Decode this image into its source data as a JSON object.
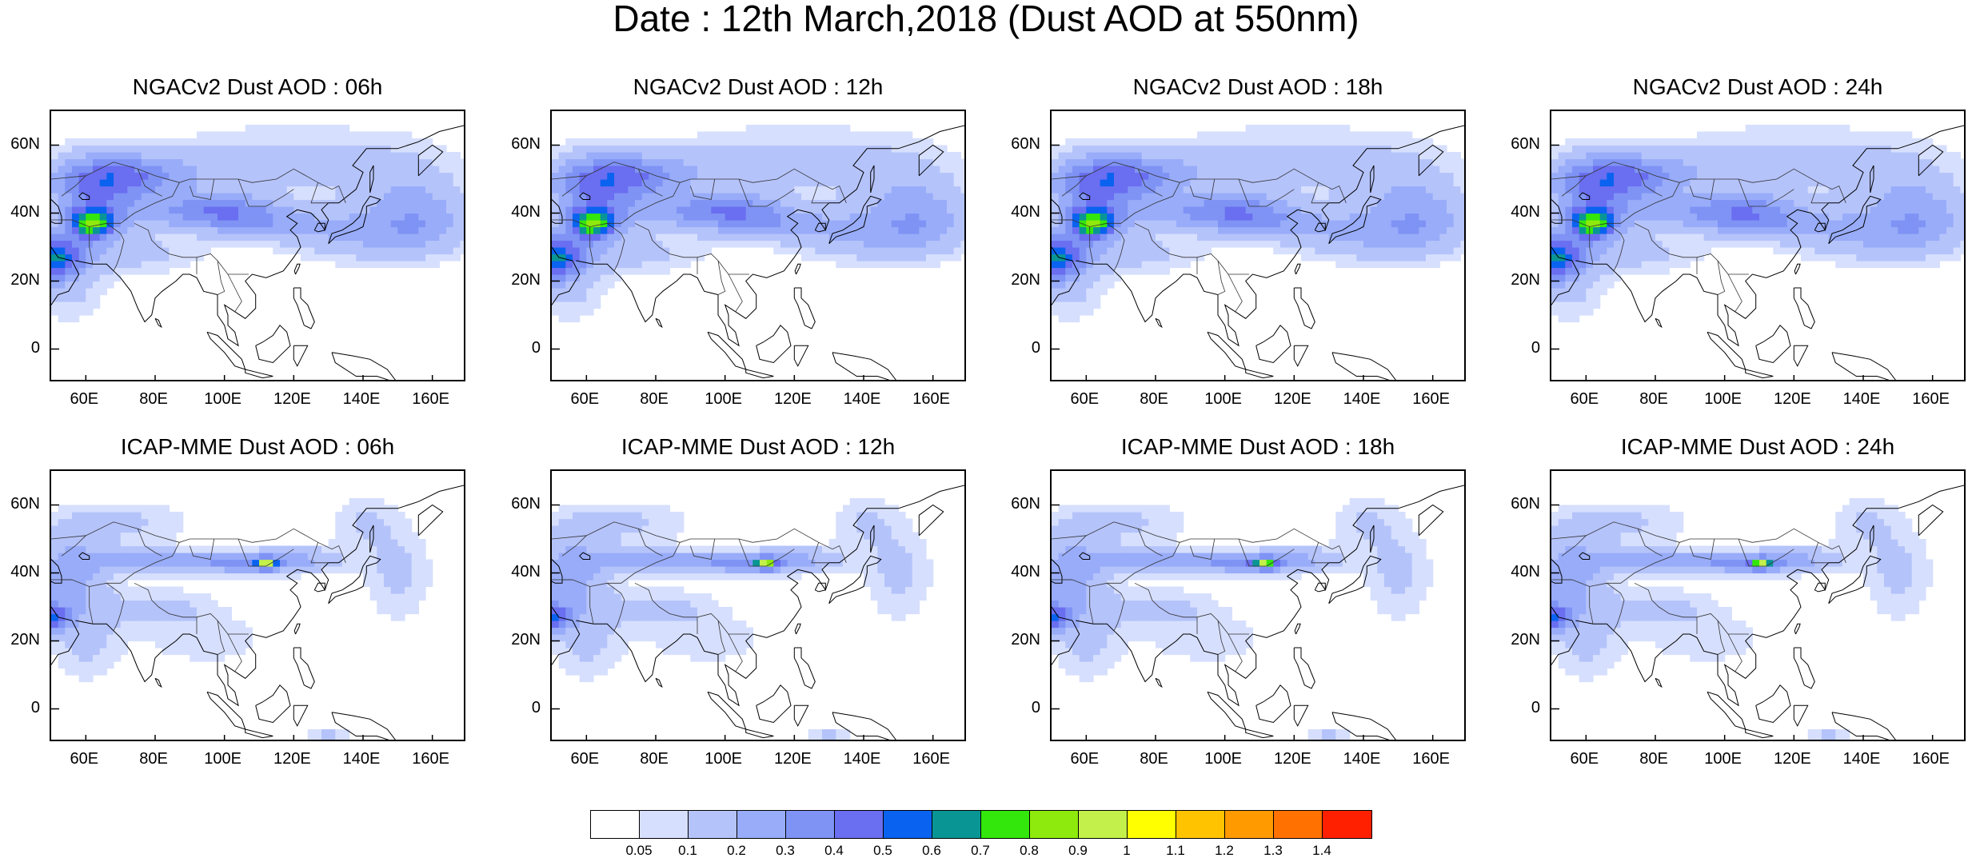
{
  "figure": {
    "title": "Date : 12th March,2018 (Dust AOD at 550nm)"
  },
  "panels": [
    {
      "title": "NGACv2 Dust AOD : 06h",
      "model": "NGACv2",
      "hour": "06h"
    },
    {
      "title": "NGACv2 Dust AOD : 12h",
      "model": "NGACv2",
      "hour": "12h"
    },
    {
      "title": "NGACv2 Dust AOD : 18h",
      "model": "NGACv2",
      "hour": "18h"
    },
    {
      "title": "NGACv2 Dust AOD : 24h",
      "model": "NGACv2",
      "hour": "24h"
    },
    {
      "title": "ICAP-MME Dust AOD : 06h",
      "model": "ICAP-MME",
      "hour": "06h"
    },
    {
      "title": "ICAP-MME Dust AOD : 12h",
      "model": "ICAP-MME",
      "hour": "12h"
    },
    {
      "title": "ICAP-MME Dust AOD : 18h",
      "model": "ICAP-MME",
      "hour": "18h"
    },
    {
      "title": "ICAP-MME Dust AOD : 24h",
      "model": "ICAP-MME",
      "hour": "24h"
    }
  ],
  "map": {
    "lat_labels": [
      "60N",
      "40N",
      "20N",
      "0"
    ],
    "lat_values": [
      60,
      40,
      20,
      0
    ],
    "lon_labels": [
      "60E",
      "80E",
      "100E",
      "120E",
      "140E",
      "160E"
    ],
    "lon_values": [
      60,
      80,
      100,
      120,
      140,
      160
    ],
    "lon_range": [
      50,
      170
    ],
    "lat_range": [
      -10,
      70
    ],
    "coastline_color": "#000000"
  },
  "colorbar": {
    "labels": [
      "0.05",
      "0.1",
      "0.2",
      "0.3",
      "0.4",
      "0.5",
      "0.6",
      "0.7",
      "0.8",
      "0.9",
      "1",
      "1.1",
      "1.2",
      "1.3",
      "1.4"
    ],
    "colors": [
      "#ffffff",
      "#d6dffd",
      "#b5c3fb",
      "#98acf9",
      "#7f93f5",
      "#6a6ef0",
      "#0a62f0",
      "#0a9595",
      "#33e60c",
      "#8eea0c",
      "#c3f04a",
      "#ffff00",
      "#ffc300",
      "#ff9a00",
      "#ff7100",
      "#ff2000"
    ]
  }
}
